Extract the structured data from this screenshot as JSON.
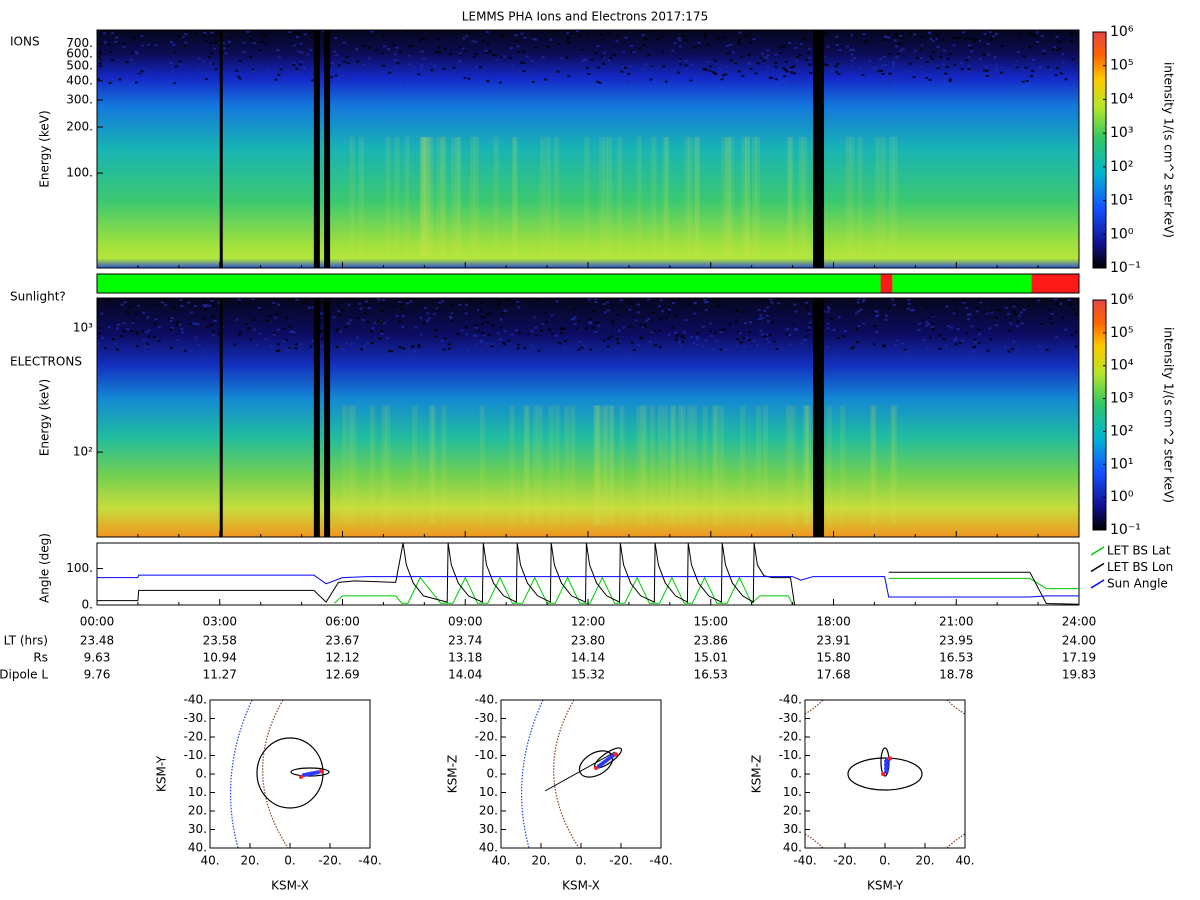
{
  "title": "LEMMS PHA Ions and Electrons  2017:175",
  "chart_data": [
    {
      "type": "spectrogram",
      "label": "IONS",
      "ylabel": "Energy (keV)",
      "log": true,
      "ylim": [
        24,
        860
      ],
      "yticks": [
        {
          "value": 100,
          "label": "100."
        },
        {
          "value": 200,
          "label": "200."
        },
        {
          "value": 300,
          "label": "300."
        },
        {
          "value": 400,
          "label": "400."
        },
        {
          "value": 500,
          "label": "500."
        },
        {
          "value": 600,
          "label": "600."
        },
        {
          "value": 700,
          "label": "700."
        }
      ],
      "zlabel": "intensity 1/(s cm^2 ster keV)",
      "zlim": [
        0.1,
        1000000
      ],
      "zticks": [
        {
          "value": 0.1,
          "label": "10⁻¹"
        },
        {
          "value": 1,
          "label": "10⁰"
        },
        {
          "value": 10,
          "label": "10¹"
        },
        {
          "value": 100,
          "label": "10²"
        },
        {
          "value": 1000,
          "label": "10³"
        },
        {
          "value": 10000,
          "label": "10⁴"
        },
        {
          "value": 100000,
          "label": "10⁵"
        },
        {
          "value": 1000000,
          "label": "10⁶"
        }
      ]
    },
    {
      "type": "timeline",
      "label": "Sunlight?",
      "intervals": [
        [
          0,
          19.15
        ],
        [
          19.15,
          19.44
        ],
        [
          19.44,
          22.84
        ],
        [
          22.84,
          24
        ]
      ],
      "colors": [
        "#00ff00",
        "#ff1a1a",
        "#00ff00",
        "#ff1a1a"
      ]
    },
    {
      "type": "spectrogram",
      "label": "ELECTRONS",
      "ylabel": "Energy (keV)",
      "log": true,
      "ylim": [
        20.7,
        1745
      ],
      "yticks": [
        {
          "value": 100,
          "label": "10²"
        },
        {
          "value": 1000,
          "label": "10³"
        }
      ],
      "zlabel": "intensity 1/(s cm^2 ster keV)",
      "zlim": [
        0.1,
        1000000
      ],
      "zticks": [
        {
          "value": 0.1,
          "label": "10⁻¹"
        },
        {
          "value": 1,
          "label": "10⁰"
        },
        {
          "value": 10,
          "label": "10¹"
        },
        {
          "value": 100,
          "label": "10²"
        },
        {
          "value": 1000,
          "label": "10³"
        },
        {
          "value": 10000,
          "label": "10⁴"
        },
        {
          "value": 100000,
          "label": "10⁵"
        },
        {
          "value": 1000000,
          "label": "10⁶"
        }
      ]
    },
    {
      "type": "line",
      "ylabel": "Angle (deg)",
      "xlim": [
        0,
        24
      ],
      "ylim": [
        0,
        170
      ],
      "xticks": [
        {
          "value": 0,
          "label": "00:00"
        },
        {
          "value": 3,
          "label": "03:00"
        },
        {
          "value": 6,
          "label": "06:00"
        },
        {
          "value": 9,
          "label": "09:00"
        },
        {
          "value": 12,
          "label": "12:00"
        },
        {
          "value": 15,
          "label": "15:00"
        },
        {
          "value": 18,
          "label": "18:00"
        },
        {
          "value": 21,
          "label": "21:00"
        },
        {
          "value": 24,
          "label": "24:00"
        }
      ],
      "yticks": [
        {
          "value": 0,
          "label": "0."
        },
        {
          "value": 100,
          "label": "100."
        }
      ],
      "legend": "outside-right",
      "series": [
        {
          "name": "LET BS Lat",
          "color": "#00cc00",
          "x": [
            5.8,
            6.0,
            7.3,
            7.45,
            7.6,
            7.9,
            8.4,
            8.7,
            9.0,
            9.3,
            9.55,
            9.85,
            10.15,
            10.4,
            10.7,
            11.0,
            11.2,
            11.5,
            11.8,
            12.05,
            12.35,
            12.65,
            12.9,
            13.2,
            13.5,
            13.75,
            14.05,
            14.35,
            14.55,
            14.85,
            15.15,
            15.4,
            15.7,
            16.0,
            16.2,
            16.9,
            17.0,
            17.01,
            19.35,
            22.8,
            23.2,
            24
          ],
          "values": [
            5,
            25,
            25,
            5,
            5,
            75,
            5,
            5,
            75,
            5,
            5,
            75,
            5,
            5,
            75,
            5,
            5,
            75,
            5,
            5,
            75,
            5,
            5,
            75,
            5,
            5,
            75,
            5,
            5,
            75,
            5,
            5,
            75,
            5,
            25,
            25,
            0,
            null,
            73,
            73,
            45,
            45
          ]
        },
        {
          "name": "LET BS Lon",
          "color": "#000000",
          "x": [
            0,
            1,
            1.02,
            5.3,
            5.6,
            5.9,
            6.3,
            7.3,
            7.48,
            7.56,
            7.73,
            7.98,
            8.56,
            8.58,
            8.66,
            8.83,
            9.08,
            9.42,
            9.44,
            9.52,
            9.69,
            9.94,
            10.25,
            10.27,
            10.35,
            10.52,
            10.77,
            11.08,
            11.1,
            11.18,
            11.35,
            11.6,
            11.94,
            11.96,
            12.04,
            12.21,
            12.46,
            12.77,
            12.79,
            12.87,
            13.04,
            13.29,
            13.62,
            13.64,
            13.72,
            13.89,
            14.14,
            14.43,
            14.45,
            14.53,
            14.7,
            14.95,
            15.26,
            15.28,
            15.36,
            15.53,
            15.78,
            16.04,
            16.06,
            16.14,
            16.3,
            16.5,
            16.95,
            17.05,
            17.06,
            19.35,
            22.8,
            23.2,
            24
          ],
          "values": [
            12,
            12,
            40,
            40,
            8,
            62,
            66,
            62,
            170,
            110,
            60,
            25,
            8,
            170,
            110,
            60,
            25,
            8,
            170,
            110,
            60,
            25,
            8,
            170,
            110,
            60,
            25,
            8,
            170,
            110,
            60,
            25,
            8,
            170,
            110,
            60,
            25,
            8,
            170,
            110,
            60,
            25,
            8,
            170,
            110,
            60,
            25,
            8,
            170,
            110,
            60,
            25,
            8,
            170,
            110,
            60,
            25,
            8,
            170,
            110,
            80,
            75,
            75,
            0,
            null,
            90,
            90,
            4,
            2
          ]
        },
        {
          "name": "Sun Angle",
          "color": "#0000ff",
          "x": [
            0,
            1,
            1.02,
            5.3,
            5.6,
            6.0,
            6.6,
            7.2,
            17.0,
            17.2,
            17.5,
            19.25,
            19.35,
            22.8,
            23.2,
            24
          ],
          "values": [
            75,
            75,
            82,
            82,
            58,
            75,
            78,
            78,
            78,
            68,
            78,
            78,
            22,
            22,
            25,
            25
          ]
        }
      ]
    },
    {
      "type": "orbit",
      "xlabel": "KSM-X",
      "ylabel": "KSM-Y",
      "xlim": [
        40,
        -40
      ],
      "ylim": [
        -40,
        40
      ],
      "xticks": [
        {
          "value": 40,
          "label": "40."
        },
        {
          "value": 20,
          "label": "20."
        },
        {
          "value": 0,
          "label": "0."
        },
        {
          "value": -20,
          "label": "-20."
        },
        {
          "value": -40,
          "label": "-40."
        }
      ],
      "yticks": [
        {
          "value": -40,
          "label": "-40."
        },
        {
          "value": -30,
          "label": "-30."
        },
        {
          "value": -20,
          "label": "-20."
        },
        {
          "value": -10,
          "label": "-10."
        },
        {
          "value": 0,
          "label": "0."
        },
        {
          "value": 10,
          "label": "10."
        },
        {
          "value": 20,
          "label": "20."
        },
        {
          "value": 30,
          "label": "30."
        },
        {
          "value": 40,
          "label": "40."
        }
      ]
    },
    {
      "type": "orbit",
      "xlabel": "KSM-X",
      "ylabel": "KSM-Z",
      "xlim": [
        40,
        -40
      ],
      "ylim": [
        -40,
        40
      ],
      "xticks": [
        {
          "value": 40,
          "label": "40."
        },
        {
          "value": 20,
          "label": "20."
        },
        {
          "value": 0,
          "label": "0."
        },
        {
          "value": -20,
          "label": "-20."
        },
        {
          "value": -40,
          "label": "-40."
        }
      ],
      "yticks": [
        {
          "value": -40,
          "label": "-40."
        },
        {
          "value": -30,
          "label": "-30."
        },
        {
          "value": -20,
          "label": "-20."
        },
        {
          "value": -10,
          "label": "-10."
        },
        {
          "value": 0,
          "label": "0."
        },
        {
          "value": 10,
          "label": "10."
        },
        {
          "value": 20,
          "label": "20."
        },
        {
          "value": 30,
          "label": "30."
        },
        {
          "value": 40,
          "label": "40."
        }
      ]
    },
    {
      "type": "orbit",
      "xlabel": "KSM-Y",
      "ylabel": "KSM-Z",
      "xlim": [
        -40,
        40
      ],
      "ylim": [
        -40,
        40
      ],
      "xticks": [
        {
          "value": -40,
          "label": "-40."
        },
        {
          "value": -20,
          "label": "-20."
        },
        {
          "value": 0,
          "label": "0."
        },
        {
          "value": 20,
          "label": "20."
        },
        {
          "value": 40,
          "label": "40."
        }
      ],
      "yticks": [
        {
          "value": -40,
          "label": "-40."
        },
        {
          "value": -30,
          "label": "-30."
        },
        {
          "value": -20,
          "label": "-20."
        },
        {
          "value": -10,
          "label": "-10."
        },
        {
          "value": 0,
          "label": "0."
        },
        {
          "value": 10,
          "label": "10."
        },
        {
          "value": 20,
          "label": "20."
        },
        {
          "value": 30,
          "label": "30."
        },
        {
          "value": 40,
          "label": "40."
        }
      ]
    }
  ],
  "ephemeris": {
    "rows": [
      {
        "label": "LT (hrs)",
        "values": [
          "23.48",
          "23.58",
          "23.67",
          "23.74",
          "23.80",
          "23.86",
          "23.91",
          "23.95",
          "24.00"
        ]
      },
      {
        "label": "Rs",
        "values": [
          "9.63",
          "10.94",
          "12.12",
          "13.18",
          "14.14",
          "15.01",
          "15.80",
          "16.53",
          "17.19"
        ]
      },
      {
        "label": "Dipole L",
        "values": [
          "9.76",
          "11.27",
          "12.69",
          "14.04",
          "15.32",
          "16.53",
          "17.68",
          "18.78",
          "19.83"
        ]
      }
    ]
  }
}
